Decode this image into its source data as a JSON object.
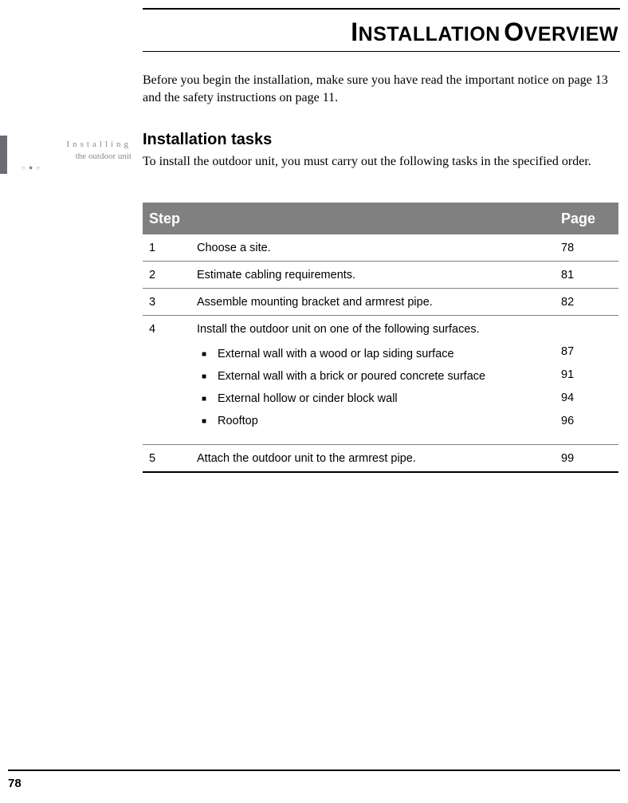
{
  "title_word1_cap": "I",
  "title_word1_rest": "NSTALLATION",
  "title_word2_cap": "O",
  "title_word2_rest": "VERVIEW",
  "intro": "Before you begin the installation, make sure you have read the important notice on page 13 and the safety instructions on page 11.",
  "section_heading": "Installation tasks",
  "intro2": "To install the outdoor unit, you must carry out the following tasks in the specified order.",
  "side_label_line1": "Installing",
  "side_label_line2": "the outdoor unit",
  "table": {
    "header_step": "Step",
    "header_page": "Page",
    "header_bg": "#808080",
    "header_fg": "#ffffff",
    "border_color": "#808080",
    "rows": [
      {
        "num": "1",
        "desc": "Choose a site.",
        "page": "78"
      },
      {
        "num": "2",
        "desc": "Estimate cabling requirements.",
        "page": "81"
      },
      {
        "num": "3",
        "desc": "Assemble mounting bracket and armrest pipe.",
        "page": "82"
      },
      {
        "num": "4",
        "desc": "Install the outdoor unit on one of the following surfaces.",
        "bullets": [
          {
            "text": "External wall with a wood or lap siding surface",
            "page": "87"
          },
          {
            "text": "External wall with a brick or poured concrete surface",
            "page": "91"
          },
          {
            "text": "External hollow or cinder block wall",
            "page": "94"
          },
          {
            "text": "Rooftop",
            "page": "96"
          }
        ]
      },
      {
        "num": "5",
        "desc": "Attach the outdoor unit to the armrest pipe.",
        "page": "99"
      }
    ]
  },
  "page_number": "78",
  "colors": {
    "side_bar": "#6c6b74",
    "side_text": "#8a8a8a",
    "text": "#000000",
    "background": "#ffffff"
  }
}
